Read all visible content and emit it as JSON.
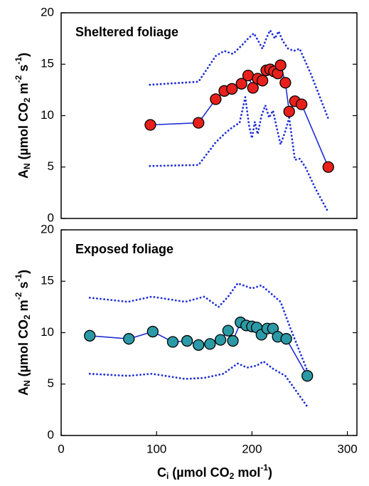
{
  "chart_data": [
    {
      "type": "line",
      "title": "Sheltered foliage",
      "y_label": [
        {
          "text": "A"
        },
        {
          "text": "N",
          "script": "sub"
        },
        {
          "text": " (µmol CO"
        },
        {
          "text": "2",
          "script": "sub"
        },
        {
          "text": " m"
        },
        {
          "text": "-2",
          "script": "sup"
        },
        {
          "text": " s"
        },
        {
          "text": "-1",
          "script": "sup"
        },
        {
          "text": ")"
        }
      ],
      "xlim": [
        0,
        310
      ],
      "ylim": [
        0,
        20
      ],
      "yticks": [
        0,
        5,
        10,
        15,
        20
      ],
      "series": [
        {
          "color": "#1f2fd6",
          "dash": "dotted",
          "marker": false,
          "x": [
            93,
            144,
            162,
            171,
            180,
            189,
            196,
            202,
            207,
            211,
            215,
            219,
            224,
            228,
            232,
            238,
            244,
            250,
            262,
            280
          ],
          "values": [
            13,
            13.3,
            15.8,
            16.3,
            16,
            16.8,
            17.5,
            18,
            17.2,
            16.5,
            17.5,
            18.3,
            17.5,
            18.2,
            17.3,
            16.5,
            16.3,
            16.5,
            14,
            9.7
          ]
        },
        {
          "color": "#1f2fd6",
          "dash": "dotted",
          "marker": false,
          "x": [
            93,
            144,
            162,
            172,
            180,
            187,
            193,
            197,
            200,
            203,
            206,
            210,
            214,
            218,
            222,
            226,
            230,
            235,
            239,
            245,
            250,
            256,
            266,
            280
          ],
          "values": [
            5.1,
            5.2,
            7.4,
            8.3,
            8.9,
            9.3,
            11.8,
            9,
            7.8,
            9.4,
            8.2,
            10,
            11,
            9.8,
            10.5,
            8.8,
            7.2,
            8.5,
            9.8,
            5.7,
            5.8,
            5,
            3,
            0.6
          ]
        },
        {
          "color": "#1f2fd6",
          "dash": "solid",
          "marker": true,
          "marker_color": "#e8201c",
          "x": [
            93.5,
            144,
            162,
            171,
            179,
            189,
            196,
            201,
            206,
            211,
            215,
            219,
            223,
            227,
            230,
            235,
            239,
            245,
            252,
            280
          ],
          "values": [
            9.1,
            9.3,
            11.6,
            12.4,
            12.6,
            13.1,
            13.9,
            12.7,
            13.6,
            13.4,
            14.4,
            14.5,
            14.3,
            14.1,
            14.9,
            13.2,
            10.4,
            11.4,
            11.1,
            5.0
          ]
        }
      ]
    },
    {
      "type": "line",
      "title": "Exposed foliage",
      "x_label": [
        {
          "text": "C"
        },
        {
          "text": "i",
          "script": "sub"
        },
        {
          "text": " (µmol CO"
        },
        {
          "text": "2",
          "script": "sub"
        },
        {
          "text": " mol"
        },
        {
          "text": "-1",
          "script": "sup"
        },
        {
          "text": ")"
        }
      ],
      "y_label": [
        {
          "text": "A"
        },
        {
          "text": "N",
          "script": "sub"
        },
        {
          "text": " (µmol CO"
        },
        {
          "text": "2",
          "script": "sub"
        },
        {
          "text": " m"
        },
        {
          "text": "-2",
          "script": "sup"
        },
        {
          "text": " s"
        },
        {
          "text": "-1",
          "script": "sup"
        },
        {
          "text": ")"
        }
      ],
      "xlim": [
        0,
        310
      ],
      "xticks": [
        0,
        100,
        200,
        300
      ],
      "ylim": [
        0,
        20
      ],
      "yticks": [
        0,
        5,
        10,
        15,
        20
      ],
      "series": [
        {
          "color": "#1f2fd6",
          "dash": "dotted",
          "marker": false,
          "x": [
            30,
            70,
            95,
            130,
            150,
            165,
            175,
            185,
            200,
            210,
            220,
            230,
            240,
            258
          ],
          "values": [
            13.4,
            13,
            13.5,
            13,
            13.5,
            12.5,
            13.5,
            14.8,
            14.3,
            14.6,
            13.8,
            13,
            10.5,
            6.3
          ]
        },
        {
          "color": "#1f2fd6",
          "dash": "dotted",
          "marker": false,
          "x": [
            30,
            70,
            95,
            130,
            150,
            170,
            185,
            195,
            205,
            212,
            222,
            235,
            245,
            258
          ],
          "values": [
            6,
            5.8,
            6,
            5.5,
            5.6,
            6,
            7,
            6.6,
            6.8,
            7.2,
            6.5,
            5.8,
            4.5,
            2.8
          ]
        },
        {
          "color": "#1f2fd6",
          "dash": "solid",
          "marker": true,
          "marker_color": "#2b9aa6",
          "x": [
            30,
            71,
            96,
            117,
            132,
            144,
            156,
            167,
            175,
            180,
            188,
            194,
            200,
            205,
            210,
            216,
            222,
            227,
            236,
            258
          ],
          "values": [
            9.7,
            9.4,
            10.1,
            9.1,
            9.2,
            8.8,
            8.9,
            9.3,
            10.2,
            9.2,
            11.0,
            10.7,
            10.6,
            10.5,
            9.8,
            10.4,
            10.4,
            9.6,
            9.4,
            5.8
          ]
        }
      ]
    }
  ]
}
